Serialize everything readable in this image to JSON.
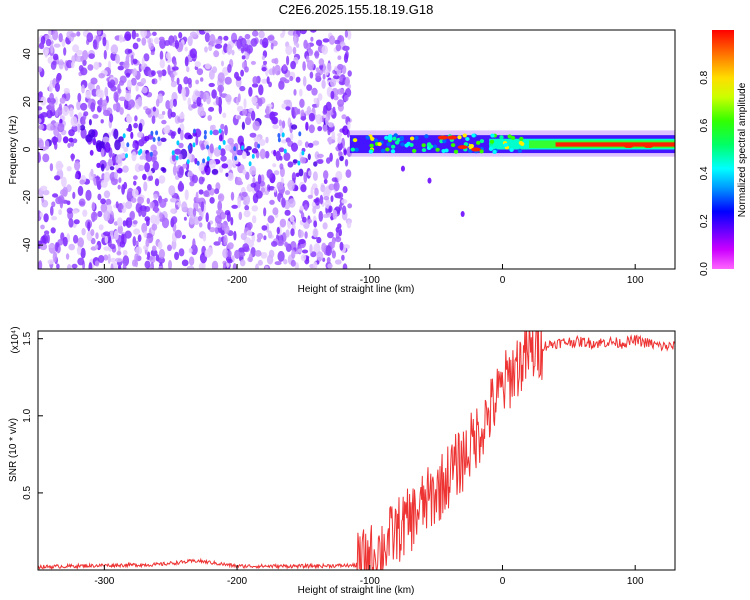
{
  "title": "C2E6.2025.155.18.19.G18",
  "chart_data": [
    {
      "type": "heatmap",
      "xlabel": "Height of straight line (km)",
      "ylabel": "Frequency (Hz)",
      "xlim": [
        -350,
        130
      ],
      "ylim": [
        -50,
        50
      ],
      "xticks": [
        -300,
        -200,
        -100,
        0,
        100
      ],
      "yticks": [
        -40,
        -20,
        0,
        20,
        40
      ],
      "colorbar": {
        "label": "Normalized spectral amplitude",
        "range": [
          0,
          1
        ],
        "ticks": [
          "0.0",
          "0.2",
          "0.4",
          "0.6",
          "0.8"
        ],
        "colormap": "rainbow (magenta-violet-blue-cyan-green-yellow-orange-red)"
      },
      "features": {
        "scattered_noise_region_km": [
          -350,
          -115
        ],
        "signal_line_start_km": -115,
        "signal_line_freq_hz": 2,
        "signal_line_peak_amplitude": 1.0
      }
    },
    {
      "type": "line",
      "xlabel": "Height of straight line (km)",
      "ylabel": "SNR (10 * v/v)",
      "y_multiplier": "(x10⁴)",
      "xlim": [
        -350,
        130
      ],
      "ylim": [
        0,
        15500
      ],
      "xticks": [
        -300,
        -200,
        -100,
        0,
        100
      ],
      "yticks": [
        "0.5",
        "1.0",
        "1.5"
      ],
      "color": "#ee3333",
      "series": [
        {
          "x": [
            -350,
            -300,
            -260,
            -230,
            -200,
            -150,
            -110,
            -100,
            -90,
            -80,
            -70,
            -60,
            -50,
            -40,
            -30,
            -20,
            -10,
            0,
            10,
            20,
            30,
            40,
            50,
            60,
            70,
            80,
            90,
            100,
            110,
            120,
            130
          ],
          "values": [
            200,
            300,
            350,
            600,
            250,
            250,
            300,
            800,
            1500,
            2500,
            3200,
            4200,
            5000,
            6200,
            7200,
            8600,
            10200,
            11800,
            13200,
            14000,
            14500,
            14700,
            14800,
            14800,
            14700,
            14800,
            14700,
            14900,
            14700,
            14500,
            14500
          ]
        }
      ]
    }
  ]
}
